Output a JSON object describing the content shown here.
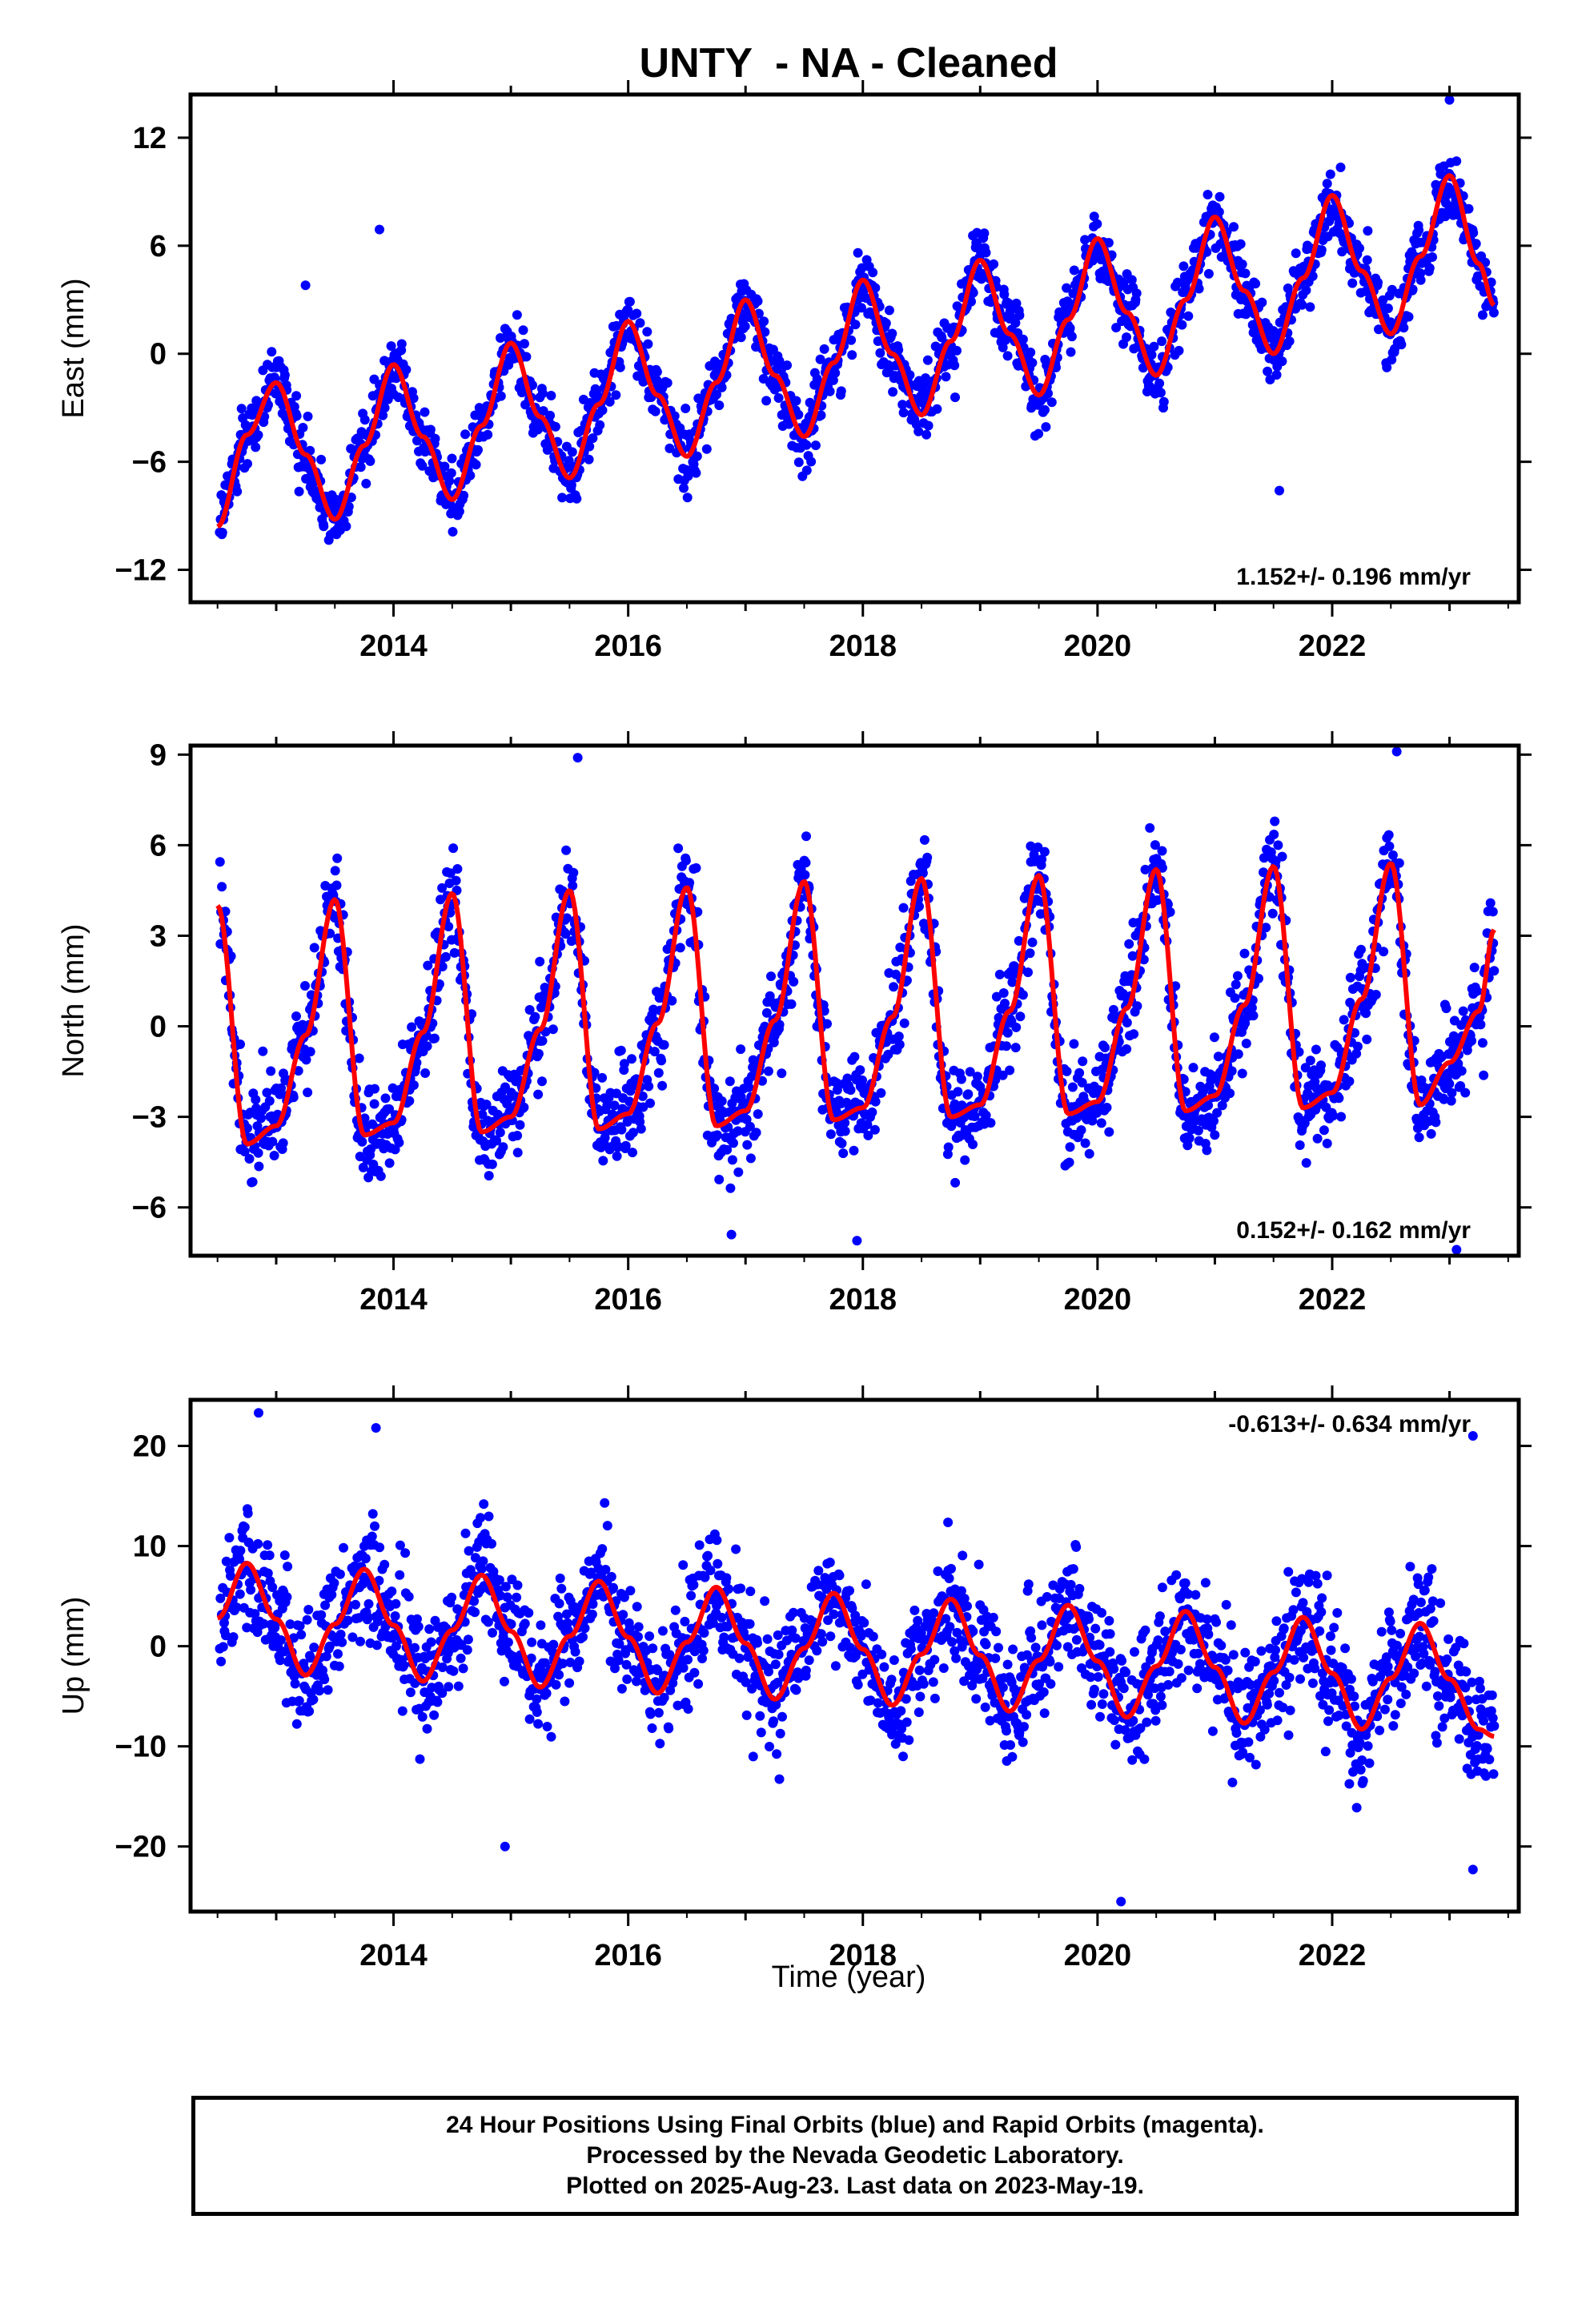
{
  "title": "UNTY  - NA - Cleaned",
  "xlabel": "Time (year)",
  "footer": {
    "line1": "24 Hour Positions Using Final Orbits (blue) and Rapid Orbits (magenta).",
    "line2": "Processed by the Nevada Geodetic Laboratory.",
    "line3": "Plotted on 2025-Aug-23. Last data on 2023-May-19."
  },
  "colors": {
    "points": "#0000ff",
    "fit": "#ff0000",
    "frame": "#000000"
  },
  "chart_data": [
    {
      "type": "scatter",
      "title": "UNTY  - NA - Cleaned",
      "ylabel": "East (mm)",
      "xlabel": "",
      "xlim": [
        2012.27,
        2023.59
      ],
      "ylim": [
        -13.8,
        14.4
      ],
      "xticks": [
        2014,
        2016,
        2018,
        2020,
        2022
      ],
      "yticks": [
        -12,
        -6,
        0,
        6,
        12
      ],
      "rate_label": "1.152+/- 0.196 mm/yr",
      "rate_position": "bottom-right",
      "fit": {
        "x": [
          2012.5,
          2012.75,
          2013.0,
          2013.25,
          2013.5,
          2013.75,
          2014.0,
          2014.25,
          2014.5,
          2014.75,
          2015.0,
          2015.25,
          2015.5,
          2015.75,
          2016.0,
          2016.25,
          2016.5,
          2016.75,
          2017.0,
          2017.25,
          2017.5,
          2017.75,
          2018.0,
          2018.25,
          2018.5,
          2018.75,
          2019.0,
          2019.25,
          2019.5,
          2019.75,
          2020.0,
          2020.25,
          2020.5,
          2020.75,
          2021.0,
          2021.25,
          2021.5,
          2021.75,
          2022.0,
          2022.25,
          2022.5,
          2022.75,
          2023.0,
          2023.25,
          2023.38
        ],
        "y": [
          -9.6,
          -4.5,
          -1.6,
          -5.6,
          -9.2,
          -5.1,
          -0.6,
          -4.6,
          -8.1,
          -4.0,
          0.6,
          -3.5,
          -6.9,
          -2.8,
          1.8,
          -2.3,
          -5.7,
          -1.6,
          3.0,
          -1.2,
          -4.6,
          -0.5,
          4.1,
          0.0,
          -3.4,
          0.7,
          5.2,
          1.1,
          -2.3,
          1.9,
          6.4,
          2.3,
          -1.2,
          3.0,
          7.6,
          3.5,
          0.0,
          4.2,
          8.8,
          4.6,
          1.1,
          5.4,
          9.9,
          5.0,
          2.7
        ]
      },
      "noise_sd": 1.25,
      "outliers": [
        [
          2021.55,
          -7.6
        ],
        [
          2013.88,
          6.9
        ],
        [
          2023.0,
          14.1
        ],
        [
          2013.25,
          3.8
        ]
      ],
      "series": [
        {
          "name": "Final Orbits",
          "color": "#0000ff"
        }
      ]
    },
    {
      "type": "scatter",
      "ylabel": "North (mm)",
      "xlabel": "",
      "xlim": [
        2012.27,
        2023.59
      ],
      "ylim": [
        -7.6,
        9.3
      ],
      "xticks": [
        2014,
        2016,
        2018,
        2020,
        2022
      ],
      "yticks": [
        -6,
        -3,
        0,
        3,
        6,
        9
      ],
      "rate_label": "0.152+/- 0.162 mm/yr",
      "rate_position": "bottom-right",
      "fit": {
        "x": [
          2012.5,
          2012.75,
          2013.0,
          2013.25,
          2013.5,
          2013.75,
          2014.0,
          2014.25,
          2014.5,
          2014.75,
          2015.0,
          2015.25,
          2015.5,
          2015.75,
          2016.0,
          2016.25,
          2016.5,
          2016.75,
          2017.0,
          2017.25,
          2017.5,
          2017.75,
          2018.0,
          2018.25,
          2018.5,
          2018.75,
          2019.0,
          2019.25,
          2019.5,
          2019.75,
          2020.0,
          2020.25,
          2020.5,
          2020.75,
          2021.0,
          2021.25,
          2021.5,
          2021.75,
          2022.0,
          2022.25,
          2022.5,
          2022.75,
          2023.0,
          2023.25,
          2023.38
        ],
        "y": [
          4.0,
          -3.9,
          -3.3,
          -0.3,
          4.2,
          -3.6,
          -3.2,
          -0.2,
          4.4,
          -3.5,
          -3.0,
          -0.1,
          4.5,
          -3.4,
          -2.9,
          0.1,
          4.6,
          -3.3,
          -2.8,
          0.2,
          4.8,
          -3.1,
          -2.7,
          0.3,
          4.9,
          -3.0,
          -2.6,
          0.5,
          5.0,
          -2.9,
          -2.5,
          0.6,
          5.2,
          -2.8,
          -2.3,
          0.7,
          5.3,
          -2.7,
          -2.2,
          0.9,
          5.4,
          -2.6,
          -1.2,
          0.5,
          3.2
        ]
      },
      "noise_sd": 1.1,
      "outliers": [
        [
          2015.57,
          8.9
        ],
        [
          2022.55,
          9.1
        ],
        [
          2023.06,
          -7.4
        ],
        [
          2016.88,
          -6.9
        ],
        [
          2017.95,
          -7.1
        ]
      ],
      "series": [
        {
          "name": "Final Orbits",
          "color": "#0000ff"
        }
      ]
    },
    {
      "type": "scatter",
      "ylabel": "Up (mm)",
      "xlabel": "Time (year)",
      "xlim": [
        2012.27,
        2023.59
      ],
      "ylim": [
        -26.5,
        24.6
      ],
      "xticks": [
        2014,
        2016,
        2018,
        2020,
        2022
      ],
      "yticks": [
        -20,
        -10,
        0,
        10,
        20
      ],
      "rate_label": "-0.613+/- 0.634 mm/yr",
      "rate_position": "top-right",
      "fit": {
        "x": [
          2012.5,
          2012.75,
          2013.0,
          2013.25,
          2013.5,
          2013.75,
          2014.0,
          2014.25,
          2014.5,
          2014.75,
          2015.0,
          2015.25,
          2015.5,
          2015.75,
          2016.0,
          2016.25,
          2016.5,
          2016.75,
          2017.0,
          2017.25,
          2017.5,
          2017.75,
          2018.0,
          2018.25,
          2018.5,
          2018.75,
          2019.0,
          2019.25,
          2019.5,
          2019.75,
          2020.0,
          2020.25,
          2020.5,
          2020.75,
          2021.0,
          2021.25,
          2021.5,
          2021.75,
          2022.0,
          2022.25,
          2022.5,
          2022.75,
          2023.0,
          2023.25,
          2023.38
        ],
        "y": [
          2.8,
          8.3,
          2.7,
          -2.9,
          2.2,
          7.7,
          2.1,
          -3.5,
          1.6,
          7.1,
          1.5,
          -4.1,
          1.0,
          6.5,
          0.9,
          -4.7,
          0.4,
          5.9,
          0.3,
          -5.3,
          -0.2,
          5.3,
          -0.3,
          -5.9,
          -0.8,
          4.7,
          -0.9,
          -6.5,
          -1.4,
          4.1,
          -1.5,
          -7.1,
          -2.0,
          3.5,
          -2.1,
          -7.7,
          -2.6,
          2.9,
          -2.7,
          -8.3,
          -3.2,
          2.3,
          -3.3,
          -8.3,
          -9.0
        ]
      },
      "noise_sd": 4.0,
      "outliers": [
        [
          2012.85,
          23.3
        ],
        [
          2013.85,
          21.8
        ],
        [
          2014.95,
          -20.0
        ],
        [
          2020.2,
          -25.5
        ],
        [
          2023.2,
          -22.3
        ],
        [
          2023.2,
          21.0
        ]
      ],
      "series": [
        {
          "name": "Final Orbits",
          "color": "#0000ff"
        }
      ]
    }
  ]
}
